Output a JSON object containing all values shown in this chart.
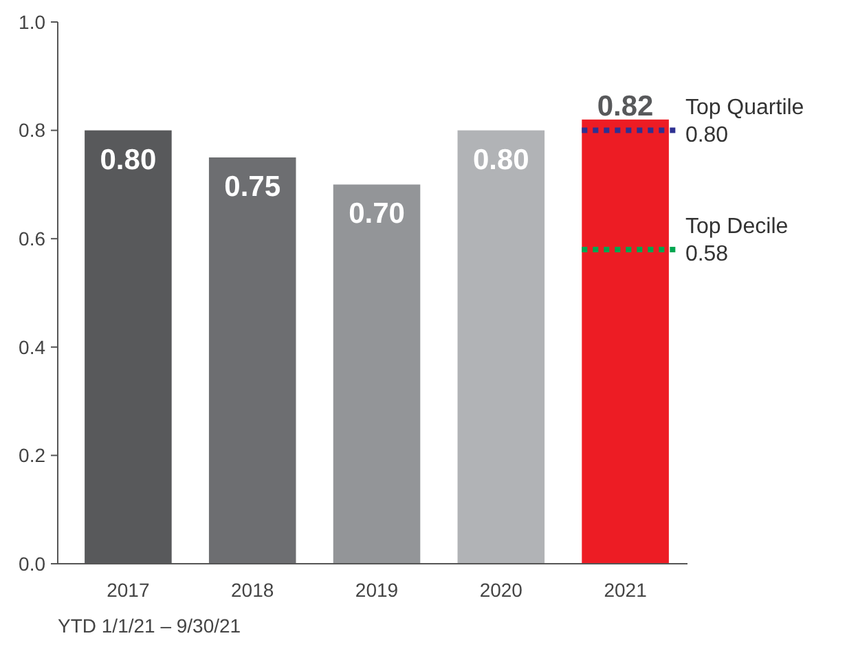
{
  "chart_data": {
    "type": "bar",
    "categories": [
      "2017",
      "2018",
      "2019",
      "2020",
      "2021"
    ],
    "values": [
      0.8,
      0.75,
      0.7,
      0.8,
      0.82
    ],
    "colors": [
      "#58595b",
      "#6d6e71",
      "#939598",
      "#b1b3b6",
      "#ed1c24"
    ],
    "value_labels": [
      "0.80",
      "0.75",
      "0.70",
      "0.80",
      "0.82"
    ],
    "ylim": [
      0,
      1.0
    ],
    "yticks": [
      {
        "value": 0,
        "label": "0.0"
      },
      0.2,
      0.4,
      0.6,
      0.8,
      {
        "value": 1,
        "label": "1.0"
      }
    ],
    "ref_lines": [
      {
        "axis": "y",
        "value": 0.8,
        "label": "Top Quartile 0.80",
        "color": "#2e3192",
        "line_style": "dotted"
      },
      {
        "axis": "y",
        "value": 0.58,
        "label": "Top Decile 0.58",
        "color": "#00a651",
        "line_style": "dotted"
      }
    ],
    "annotations": [
      "YTD 1/1/21 – 9/30/21"
    ]
  }
}
